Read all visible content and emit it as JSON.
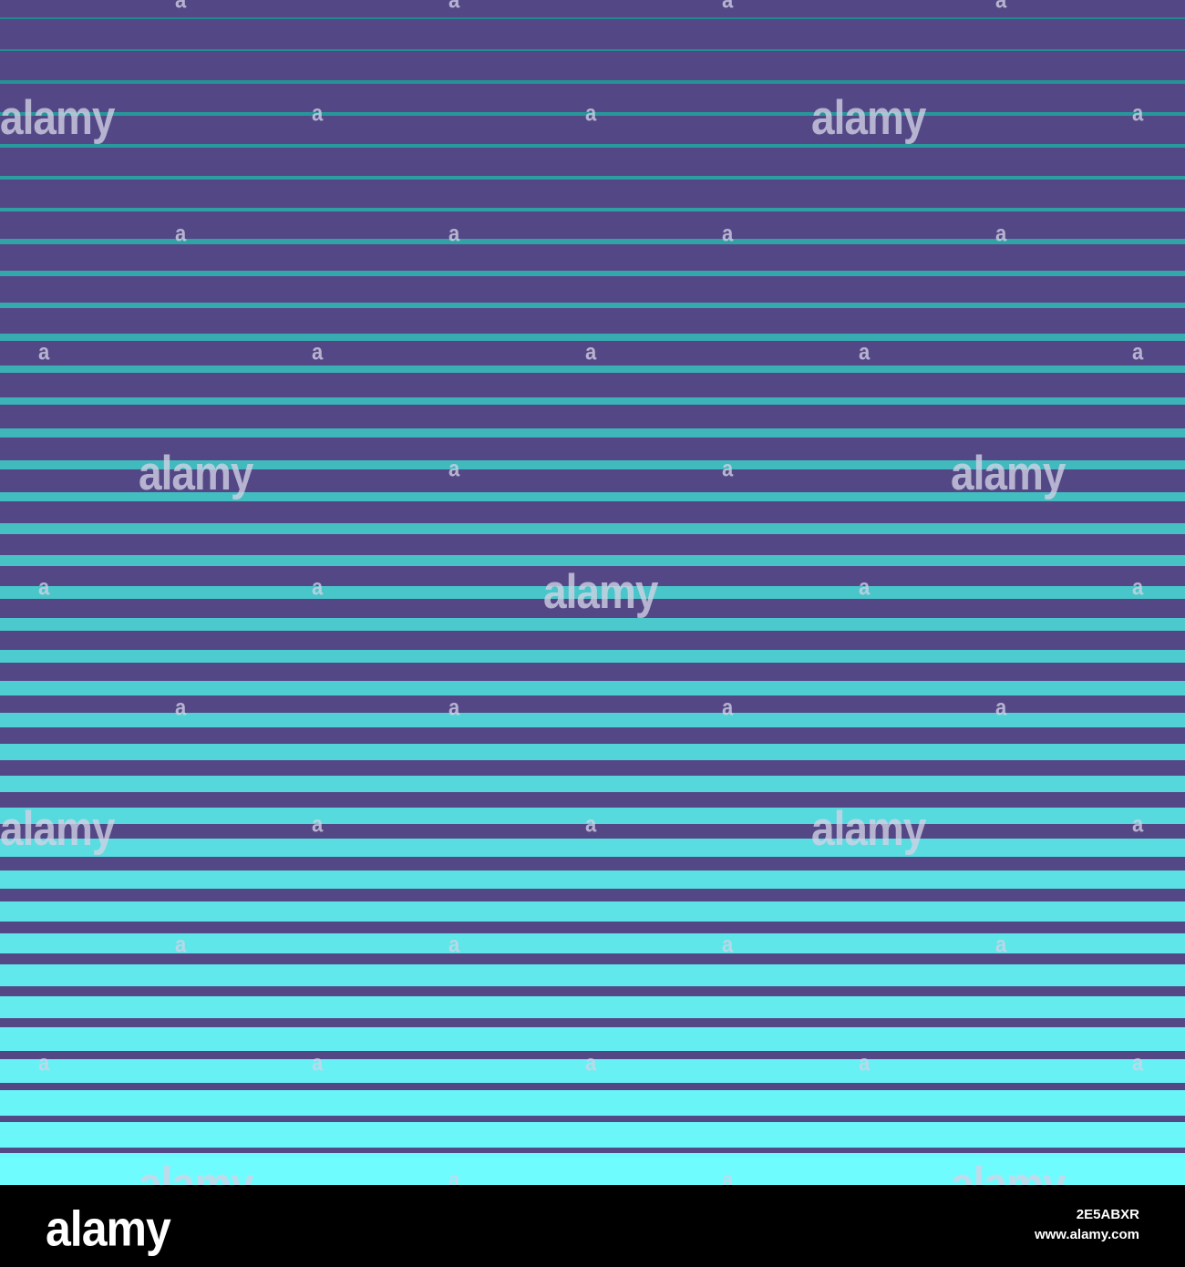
{
  "colors": {
    "background": "#544786",
    "stripe_start": "#1f8a8e",
    "stripe_end": "#6ffcff",
    "footer_background": "#000000",
    "watermark": "#d2d2e6"
  },
  "watermark": {
    "brand_text": "alamy",
    "small_mark": "a"
  },
  "footer": {
    "logo_text": "alamy",
    "image_id": "2E5ABXR",
    "site_url": "www.alamy.com"
  }
}
